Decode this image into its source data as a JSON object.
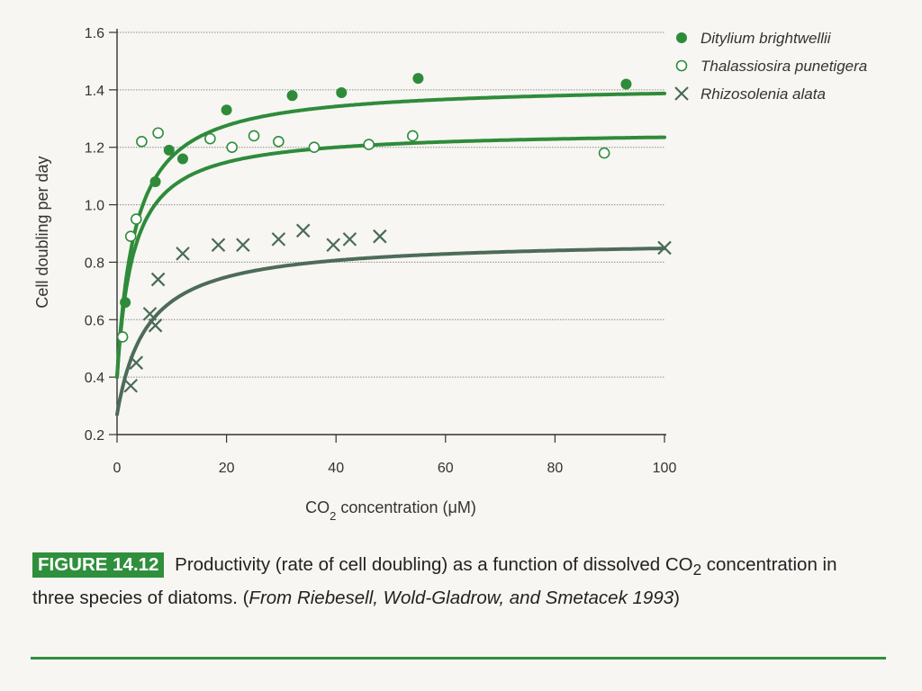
{
  "chart_data": {
    "type": "scatter",
    "xlabel_prefix": "CO",
    "xlabel_sub": "2",
    "xlabel_suffix": " concentration (μM)",
    "ylabel": "Cell doubling per day",
    "xlim": [
      0,
      100
    ],
    "ylim": [
      0.2,
      1.6
    ],
    "x_ticks": [
      "0",
      "20",
      "40",
      "60",
      "80",
      "100"
    ],
    "y_ticks": [
      "0.2",
      "0.4",
      "0.6",
      "0.8",
      "1.0",
      "1.2",
      "1.4",
      "1.6"
    ],
    "grid": "horizontal dotted",
    "legend_position": "top-right",
    "colors": {
      "ditylium": "#2e8b3a",
      "thalassiosira": "#2e8b3a",
      "rhizosolenia": "#4a6b55",
      "ditylium_curve": "#2e8b3a",
      "rhizosolenia_curve": "#4d6b58"
    },
    "series": [
      {
        "name": "Ditylium brightwellii",
        "marker": "filled-circle",
        "points": [
          [
            1.5,
            0.66
          ],
          [
            7,
            1.08
          ],
          [
            9.5,
            1.19
          ],
          [
            12,
            1.16
          ],
          [
            20,
            1.33
          ],
          [
            32,
            1.38
          ],
          [
            41,
            1.39
          ],
          [
            55,
            1.44
          ],
          [
            93,
            1.42
          ]
        ],
        "curve": {
          "vmax": 1.42,
          "k": 3.3,
          "y0": 0.4
        }
      },
      {
        "name": "Thalassiosira punetigera",
        "marker": "open-circle",
        "points": [
          [
            1,
            0.54
          ],
          [
            2.5,
            0.89
          ],
          [
            3.5,
            0.95
          ],
          [
            4.5,
            1.22
          ],
          [
            7.5,
            1.25
          ],
          [
            17,
            1.23
          ],
          [
            21,
            1.2
          ],
          [
            25,
            1.24
          ],
          [
            29.5,
            1.22
          ],
          [
            36,
            1.2
          ],
          [
            46,
            1.21
          ],
          [
            54,
            1.24
          ],
          [
            89,
            1.18
          ]
        ],
        "curve": {
          "vmax": 1.26,
          "k": 3.0,
          "y0": 0.4
        }
      },
      {
        "name": "Rhizosolenia alata",
        "marker": "x",
        "points": [
          [
            2.5,
            0.37
          ],
          [
            3.5,
            0.45
          ],
          [
            6,
            0.62
          ],
          [
            7,
            0.58
          ],
          [
            7.5,
            0.74
          ],
          [
            12,
            0.83
          ],
          [
            18.5,
            0.86
          ],
          [
            23,
            0.86
          ],
          [
            29.5,
            0.88
          ],
          [
            34,
            0.91
          ],
          [
            39.5,
            0.86
          ],
          [
            42.5,
            0.88
          ],
          [
            48,
            0.89
          ],
          [
            100,
            0.85
          ]
        ],
        "curve": {
          "vmax": 0.88,
          "k": 5.5,
          "y0": 0.27
        }
      }
    ]
  },
  "caption": {
    "figure_label": "FIGURE 14.12",
    "text_prefix": " Productivity (rate of cell doubling) as a function of dissolved CO",
    "text_sub": "2",
    "text_middle": " concentration in three species of diatoms. (",
    "source_italic": "From Riebesell, Wold-Gladrow, and Smetacek 1993",
    "text_end": ")"
  }
}
